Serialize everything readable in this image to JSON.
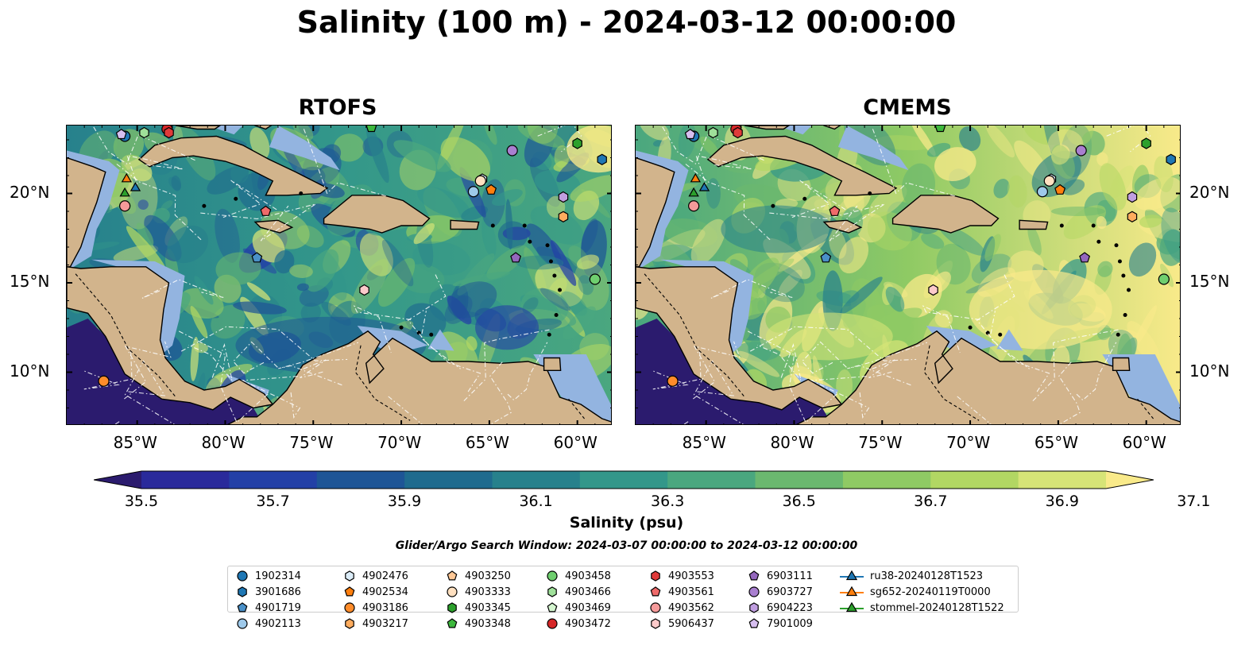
{
  "title": "Salinity (100 m) - 2024-03-12 00:00:00",
  "panels": [
    {
      "name": "RTOFS",
      "variant": "rtofs"
    },
    {
      "name": "CMEMS",
      "variant": "cmems"
    }
  ],
  "axes": {
    "lon_ticks": [
      "85°W",
      "80°W",
      "75°W",
      "70°W",
      "65°W",
      "60°W"
    ],
    "lat_ticks": [
      "20°N",
      "15°N",
      "10°N"
    ],
    "lon_range": [
      -89,
      -58
    ],
    "lat_range": [
      7.0,
      23.8
    ]
  },
  "colorbar": {
    "label": "Salinity (psu)",
    "ticks": [
      "35.5",
      "35.7",
      "35.9",
      "36.1",
      "36.3",
      "36.5",
      "36.7",
      "36.9",
      "37.1"
    ],
    "colors": [
      "#2b1b6e",
      "#2a2a9b",
      "#2340a6",
      "#1e5596",
      "#1f6b8e",
      "#27818c",
      "#33978a",
      "#4aa77f",
      "#6bb86f",
      "#8fca64",
      "#b2d763",
      "#d6e477",
      "#f9ea8a"
    ]
  },
  "search_window": "Glider/Argo Search Window: 2024-03-07 00:00:00 to 2024-03-12 00:00:00",
  "legend": {
    "floats": [
      {
        "id": "1902314",
        "marker": "circle",
        "color": "#1f77b4"
      },
      {
        "id": "3901686",
        "marker": "hexagon",
        "color": "#1f77b4"
      },
      {
        "id": "4901719",
        "marker": "pentagon",
        "color": "#4a90c8"
      },
      {
        "id": "4902113",
        "marker": "circle",
        "color": "#9ec9ea"
      },
      {
        "id": "4902476",
        "marker": "hexagon",
        "color": "#dbecf8"
      },
      {
        "id": "4902534",
        "marker": "pentagon",
        "color": "#ff7f0e"
      },
      {
        "id": "4903186",
        "marker": "circle",
        "color": "#ff8c2a"
      },
      {
        "id": "4903217",
        "marker": "hexagon",
        "color": "#ffac5e"
      },
      {
        "id": "4903250",
        "marker": "pentagon",
        "color": "#ffc896"
      },
      {
        "id": "4903333",
        "marker": "circle",
        "color": "#ffe0c0"
      },
      {
        "id": "4903345",
        "marker": "hexagon",
        "color": "#2ca02c"
      },
      {
        "id": "4903348",
        "marker": "pentagon",
        "color": "#3db83d"
      },
      {
        "id": "4903458",
        "marker": "circle",
        "color": "#6fcf6f"
      },
      {
        "id": "4903466",
        "marker": "hexagon",
        "color": "#9fe09a"
      },
      {
        "id": "4903469",
        "marker": "pentagon",
        "color": "#d4f5cf"
      },
      {
        "id": "4903472",
        "marker": "circle",
        "color": "#d62728"
      },
      {
        "id": "4903553",
        "marker": "hexagon",
        "color": "#e03a3a"
      },
      {
        "id": "4903561",
        "marker": "pentagon",
        "color": "#ef6a6a"
      },
      {
        "id": "4903562",
        "marker": "circle",
        "color": "#f59a9a"
      },
      {
        "id": "5906437",
        "marker": "hexagon",
        "color": "#fccaca"
      },
      {
        "id": "6903111",
        "marker": "pentagon",
        "color": "#9467bd"
      },
      {
        "id": "6903727",
        "marker": "circle",
        "color": "#a97fd0"
      },
      {
        "id": "6904223",
        "marker": "hexagon",
        "color": "#c09ee0"
      },
      {
        "id": "7901009",
        "marker": "pentagon",
        "color": "#d7bff0"
      }
    ],
    "gliders": [
      {
        "id": "ru38-20240128T1523",
        "color": "#1f77b4"
      },
      {
        "id": "sg652-20240119T0000",
        "color": "#ff7f0e"
      },
      {
        "id": "stommel-20240128T1522",
        "color": "#2ca02c"
      }
    ]
  },
  "markers_on_map": [
    {
      "id": "1902314",
      "lon": -85.7,
      "lat": 23.2
    },
    {
      "id": "3901686",
      "lon": -58.6,
      "lat": 21.9
    },
    {
      "id": "4901719",
      "lon": -78.2,
      "lat": 16.4
    },
    {
      "id": "4902113",
      "lon": -65.9,
      "lat": 20.1
    },
    {
      "id": "4902476",
      "lon": -65.4,
      "lat": 20.8
    },
    {
      "id": "4902534",
      "lon": -64.9,
      "lat": 20.2
    },
    {
      "id": "4903186",
      "lon": -86.9,
      "lat": 9.5
    },
    {
      "id": "4903217",
      "lon": -60.8,
      "lat": 18.7
    },
    {
      "id": "4903333",
      "lon": -65.5,
      "lat": 20.7
    },
    {
      "id": "4903345",
      "lon": -60.0,
      "lat": 22.8
    },
    {
      "id": "4903348",
      "lon": -71.7,
      "lat": 23.7
    },
    {
      "id": "4903458",
      "lon": -59.0,
      "lat": 15.2
    },
    {
      "id": "4903466",
      "lon": -84.6,
      "lat": 23.4
    },
    {
      "id": "4903472",
      "lon": -83.3,
      "lat": 23.6
    },
    {
      "id": "4903553",
      "lon": -83.2,
      "lat": 23.4
    },
    {
      "id": "4903561",
      "lon": -77.7,
      "lat": 19.0
    },
    {
      "id": "4903562",
      "lon": -85.7,
      "lat": 19.3
    },
    {
      "id": "5906437",
      "lon": -72.1,
      "lat": 14.6
    },
    {
      "id": "6903111",
      "lon": -63.5,
      "lat": 16.4
    },
    {
      "id": "6903727",
      "lon": -63.7,
      "lat": 22.4
    },
    {
      "id": "6904223",
      "lon": -60.8,
      "lat": 19.8
    },
    {
      "id": "7901009",
      "lon": -85.9,
      "lat": 23.3
    },
    {
      "id": "ru38-20240128T1523",
      "lon": -85.1,
      "lat": 20.3
    },
    {
      "id": "sg652-20240119T0000",
      "lon": -85.6,
      "lat": 20.8
    },
    {
      "id": "stommel-20240128T1522",
      "lon": -85.7,
      "lat": 20.0
    }
  ],
  "colors": {
    "land": "#d2b48c",
    "shelf": "#93b4e0",
    "grid": "#ffffff"
  }
}
